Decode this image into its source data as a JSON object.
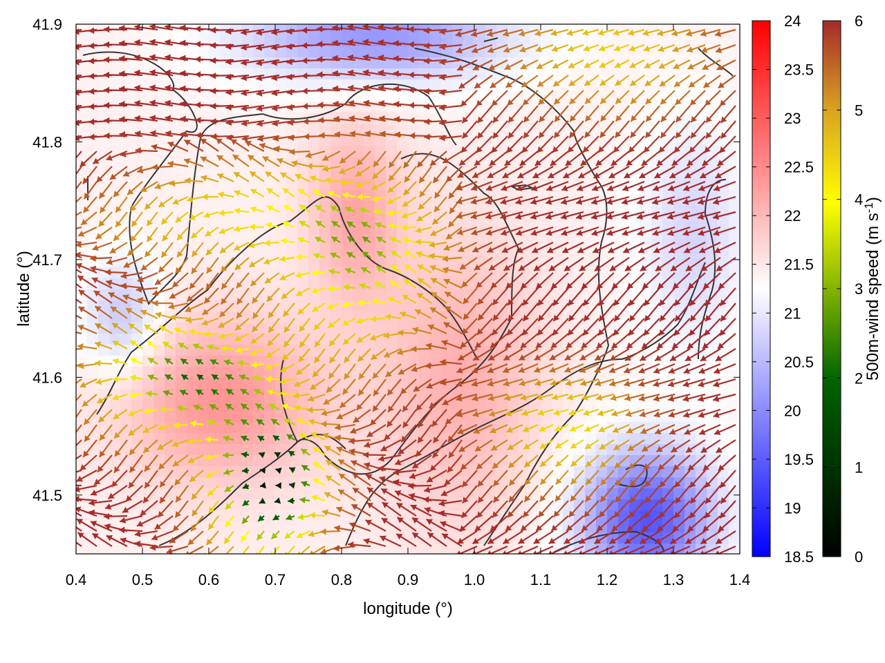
{
  "chart_data": {
    "type": "heatmap",
    "subtype": "scalar field with wind vector overlay and contour lines",
    "xlabel": "longitude (°)",
    "ylabel": "latitude (°)",
    "xlim": [
      0.4,
      1.4
    ],
    "ylim": [
      41.45,
      41.9
    ],
    "x_ticks": [
      "0.4",
      "0.5",
      "0.6",
      "0.7",
      "0.8",
      "0.9",
      "1.0",
      "1.1",
      "1.2",
      "1.3",
      "1.4"
    ],
    "y_ticks": [
      "41.5",
      "41.6",
      "41.7",
      "41.8",
      "41.9"
    ],
    "x_tick_values": [
      0.4,
      0.5,
      0.6,
      0.7,
      0.8,
      0.9,
      1.0,
      1.1,
      1.2,
      1.3,
      1.4
    ],
    "y_tick_values": [
      41.5,
      41.6,
      41.7,
      41.8,
      41.9
    ],
    "grid": false,
    "background_field": {
      "colorbar_range": [
        18.5,
        24
      ],
      "colorbar_ticks": [
        "24",
        "23.5",
        "23",
        "22.5",
        "22",
        "21.5",
        "21",
        "20.5",
        "20",
        "19.5",
        "19",
        "18.5"
      ],
      "colorbar_tick_values": [
        24,
        23.5,
        23,
        22.5,
        22,
        21.5,
        21,
        20.5,
        20,
        19.5,
        19,
        18.5
      ],
      "palette": [
        "#0000ff",
        "#ffffff",
        "#ff0000"
      ]
    },
    "vector_field": {
      "colorbar_label": "500m-wind speed (m s-1)",
      "colorbar_range": [
        0,
        6
      ],
      "colorbar_ticks": [
        "6",
        "5",
        "4",
        "3",
        "2",
        "1",
        "0"
      ],
      "colorbar_tick_values": [
        6,
        5,
        4,
        3,
        2,
        1,
        0
      ],
      "palette": [
        "#000000",
        "#006400",
        "#ffff00",
        "#daa520",
        "#a52a2a"
      ],
      "approx_speed_regions": [
        {
          "area": "southwest basin around lon 0.65-0.75, lat 41.45-41.57",
          "speed": 0.5
        },
        {
          "area": "central west lon 0.45-0.7, lat 41.55-41.65",
          "speed": 1.5
        },
        {
          "area": "central lon 0.75-0.95, lat 41.62-41.78",
          "speed": 2.5
        },
        {
          "area": "northwest band lon 0.45-0.8, lat 41.7-41.78",
          "speed": 4
        },
        {
          "area": "north lon 0.4-1.0, lat 41.8-41.9",
          "speed": 6
        },
        {
          "area": "east lon 1.05-1.4, lat 41.45-41.8",
          "speed": 6
        },
        {
          "area": "northeast corner lon 1.1-1.4, lat 41.85-41.9",
          "speed": 4
        }
      ]
    },
    "contour_color": "#333333"
  }
}
